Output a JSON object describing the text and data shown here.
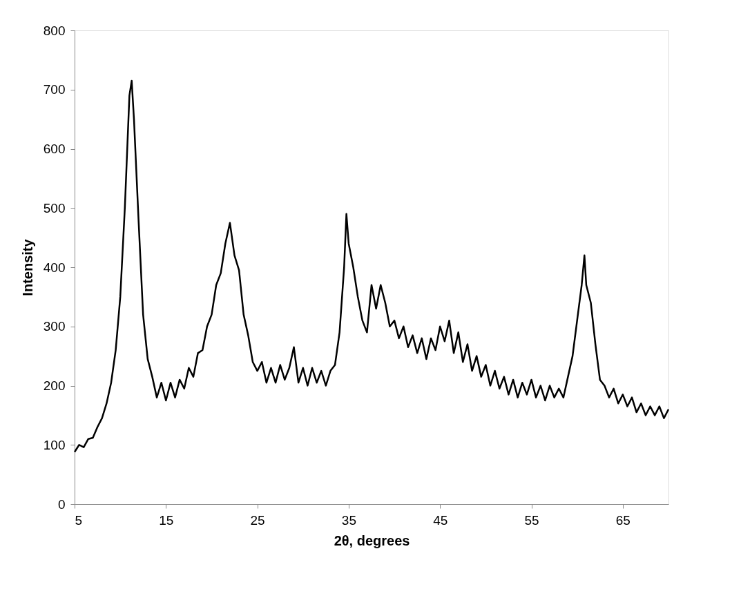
{
  "chart_data": {
    "type": "line",
    "xlabel": "2θ, degrees",
    "ylabel": "Intensity",
    "xlim": [
      5,
      70
    ],
    "xticks": [
      5,
      15,
      25,
      35,
      45,
      55,
      65
    ],
    "ylim": [
      0,
      800
    ],
    "yticks": [
      0,
      100,
      200,
      300,
      400,
      500,
      600,
      700,
      800
    ],
    "grid": false,
    "marker": "none",
    "line_style": "solid",
    "series": [
      {
        "color": "#000000",
        "x": [
          5,
          5.5,
          6,
          6.5,
          7,
          7.5,
          8,
          8.5,
          9,
          9.5,
          10,
          10.5,
          11,
          11.25,
          11.5,
          12,
          12.5,
          13,
          13.5,
          14,
          14.5,
          15,
          15.5,
          16,
          16.5,
          17,
          17.5,
          18,
          18.5,
          19,
          19.5,
          20,
          20.5,
          21,
          21.5,
          22,
          22.5,
          23,
          23.5,
          24,
          24.5,
          25,
          25.5,
          26,
          26.5,
          27,
          27.5,
          28,
          28.5,
          29,
          29.5,
          30,
          30.5,
          31,
          31.5,
          32,
          32.5,
          33,
          33.5,
          34,
          34.5,
          34.75,
          35,
          35.5,
          36,
          36.5,
          37,
          37.5,
          38,
          38.5,
          39,
          39.5,
          40,
          40.5,
          41,
          41.5,
          42,
          42.5,
          43,
          43.5,
          44,
          44.5,
          45,
          45.5,
          46,
          46.5,
          47,
          47.5,
          48,
          48.5,
          49,
          49.5,
          50,
          50.5,
          51,
          51.5,
          52,
          52.5,
          53,
          53.5,
          54,
          54.5,
          55,
          55.5,
          56,
          56.5,
          57,
          57.5,
          58,
          58.5,
          59,
          59.5,
          60,
          60.5,
          60.8,
          61,
          61.5,
          62,
          62.5,
          63,
          63.5,
          64,
          64.5,
          65,
          65.5,
          66,
          66.5,
          67,
          67.5,
          68,
          68.5,
          69,
          69.5,
          70
        ],
        "values": [
          88,
          100,
          96,
          110,
          112,
          130,
          145,
          170,
          205,
          260,
          350,
          500,
          690,
          715,
          650,
          480,
          320,
          245,
          215,
          180,
          205,
          175,
          205,
          180,
          210,
          195,
          230,
          215,
          255,
          260,
          300,
          320,
          370,
          390,
          440,
          475,
          420,
          395,
          320,
          285,
          240,
          225,
          240,
          205,
          230,
          205,
          235,
          210,
          230,
          265,
          205,
          230,
          200,
          230,
          205,
          225,
          200,
          225,
          235,
          290,
          400,
          490,
          440,
          400,
          350,
          310,
          290,
          370,
          330,
          370,
          340,
          300,
          310,
          280,
          300,
          265,
          285,
          255,
          280,
          245,
          280,
          260,
          300,
          275,
          310,
          255,
          290,
          240,
          270,
          225,
          250,
          215,
          235,
          200,
          225,
          195,
          215,
          185,
          210,
          180,
          205,
          185,
          210,
          180,
          200,
          175,
          200,
          180,
          195,
          180,
          215,
          250,
          310,
          370,
          420,
          370,
          340,
          270,
          210,
          200,
          180,
          195,
          170,
          185,
          165,
          180,
          155,
          170,
          150,
          165,
          150,
          165,
          145,
          160
        ]
      }
    ]
  }
}
